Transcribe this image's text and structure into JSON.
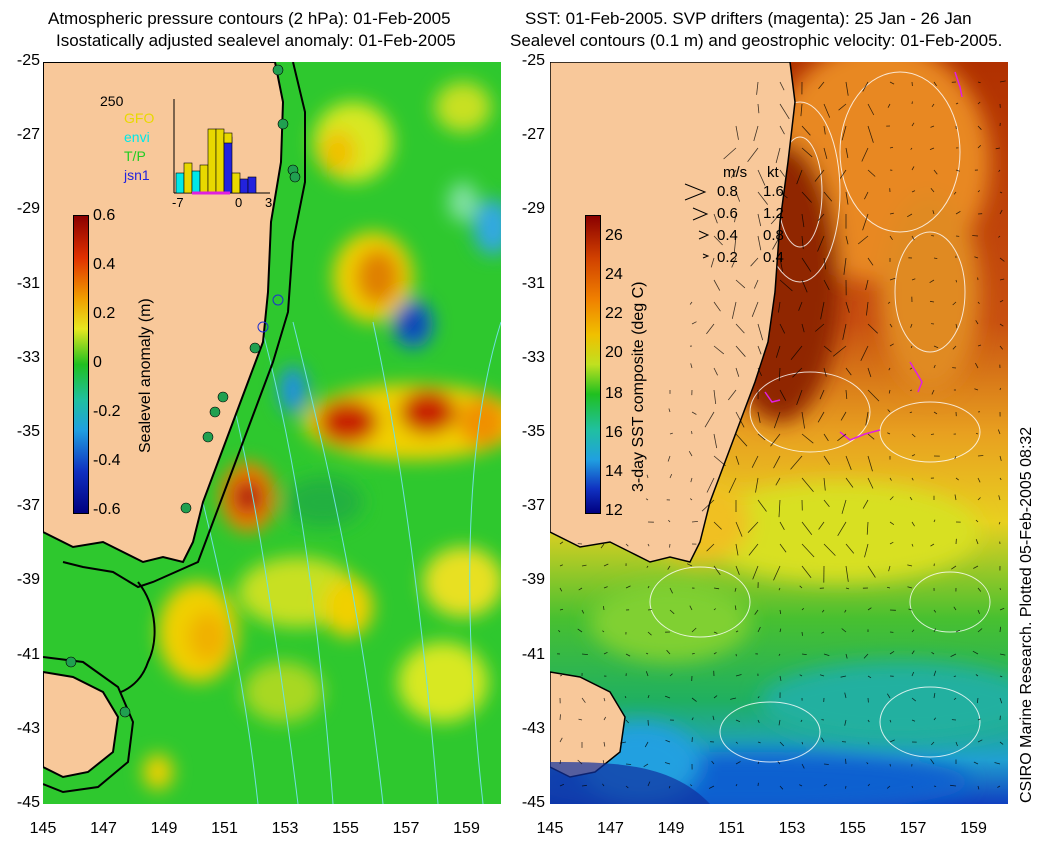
{
  "left_panel": {
    "title_line1": "Atmospheric pressure contours (2 hPa): 01-Feb-2005",
    "title_line2": "Isostatically adjusted sealevel anomaly: 01-Feb-2005",
    "colorbar_label": "Sealevel anomaly (m)",
    "colorbar_ticks": [
      "0.6",
      "0.4",
      "0.2",
      "0",
      "-0.2",
      "-0.4",
      "-0.6"
    ],
    "inset": {
      "top_value": "250",
      "satellites": [
        {
          "name": "GFO",
          "color": "#e8d800"
        },
        {
          "name": "envi",
          "color": "#00e8e8"
        },
        {
          "name": "T/P",
          "color": "#22cc22"
        },
        {
          "name": "jsn1",
          "color": "#2222dd"
        }
      ],
      "x_ticks": [
        "-7",
        "0",
        "3"
      ]
    }
  },
  "right_panel": {
    "title_line1": "SST: 01-Feb-2005. SVP drifters (magenta): 25 Jan - 26 Jan",
    "title_line2": "Sealevel contours (0.1 m) and geostrophic velocity: 01-Feb-2005.",
    "colorbar_label": "3-day SST composite (deg C)",
    "colorbar_ticks": [
      "26",
      "24",
      "22",
      "20",
      "18",
      "16",
      "14",
      "12"
    ],
    "velocity_legend": {
      "header_ms": "m/s",
      "header_kt": "kt",
      "rows": [
        {
          "ms": "0.8",
          "kt": "1.6"
        },
        {
          "ms": "0.6",
          "kt": "1.2"
        },
        {
          "ms": "0.4",
          "kt": "0.8"
        },
        {
          "ms": "0.2",
          "kt": "0.4"
        }
      ]
    }
  },
  "y_ticks": [
    "-25",
    "-27",
    "-29",
    "-31",
    "-33",
    "-35",
    "-37",
    "-39",
    "-41",
    "-43",
    "-45"
  ],
  "x_ticks": [
    "145",
    "147",
    "149",
    "151",
    "153",
    "155",
    "157",
    "159"
  ],
  "credit": "CSIRO Marine Research. Plotted 05-Feb-2005 08:32",
  "colors": {
    "land": "#f8c89a",
    "sla_ocean": "#2ec82e",
    "sst_ocean": "#e89a20"
  }
}
